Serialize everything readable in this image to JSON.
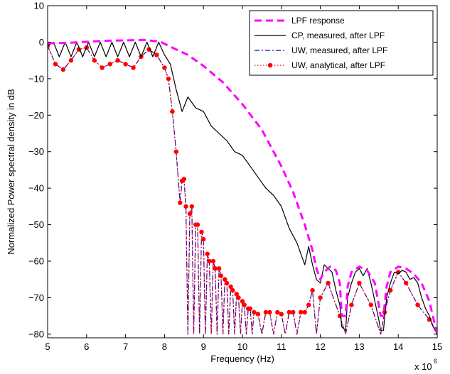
{
  "chart_data": {
    "type": "line",
    "xlabel": "Frequency (Hz)",
    "ylabel": "Normalized Power spectral density in dB",
    "x_multiplier": "x 10",
    "x_multiplier_exp": "6",
    "xlim": [
      5,
      15
    ],
    "ylim": [
      -81,
      10
    ],
    "xticks": [
      5,
      6,
      7,
      8,
      9,
      10,
      11,
      12,
      13,
      14,
      15
    ],
    "yticks": [
      10,
      0,
      -10,
      -20,
      -30,
      -40,
      -50,
      -60,
      -70,
      -80
    ],
    "grid": false,
    "legend_position": "top-right",
    "series": [
      {
        "name": "LPF response",
        "color": "#ff00ff",
        "style": "dashed",
        "x": [
          5.0,
          5.5,
          6.0,
          6.5,
          7.0,
          7.5,
          7.9,
          8.2,
          8.6,
          9.0,
          9.5,
          10.0,
          10.5,
          11.0,
          11.3,
          11.6,
          11.8,
          11.9,
          12.0,
          12.1,
          12.25,
          12.4,
          12.5,
          12.55,
          12.65,
          12.7,
          12.8,
          13.0,
          13.2,
          13.4,
          13.55,
          13.62,
          13.7,
          13.8,
          14.0,
          14.2,
          14.4,
          14.6,
          14.8,
          15.0
        ],
        "y": [
          -0.3,
          -0.2,
          0.1,
          0.4,
          0.5,
          0.6,
          0.1,
          -1.5,
          -3.5,
          -6.5,
          -11.0,
          -17.0,
          -24.0,
          -34.0,
          -41.0,
          -50.0,
          -57.0,
          -62.0,
          -65.0,
          -63.0,
          -61.5,
          -62.5,
          -66.0,
          -75.0,
          -75.0,
          -67.0,
          -63.0,
          -61.5,
          -62.5,
          -66.0,
          -75.0,
          -75.0,
          -67.0,
          -63.0,
          -61.5,
          -62.0,
          -63.5,
          -66.0,
          -71.0,
          -80.0
        ]
      },
      {
        "name": "CP, measured, after LPF",
        "color": "#000000",
        "style": "solid",
        "x": [
          5.0,
          5.15,
          5.3,
          5.45,
          5.6,
          5.75,
          5.9,
          6.05,
          6.2,
          6.35,
          6.5,
          6.65,
          6.8,
          6.95,
          7.1,
          7.25,
          7.4,
          7.55,
          7.7,
          7.85,
          8.0,
          8.15,
          8.3,
          8.45,
          8.6,
          8.8,
          9.0,
          9.2,
          9.4,
          9.6,
          9.8,
          10.0,
          10.2,
          10.4,
          10.6,
          10.8,
          11.0,
          11.2,
          11.4,
          11.6,
          11.7,
          11.8,
          11.9,
          12.0,
          12.1,
          12.2,
          12.3,
          12.4,
          12.5,
          12.55,
          12.65,
          12.7,
          12.8,
          12.9,
          13.0,
          13.1,
          13.2,
          13.3,
          13.4,
          13.5,
          13.55,
          13.62,
          13.7,
          13.8,
          13.9,
          14.0,
          14.1,
          14.2,
          14.3,
          14.4,
          14.5,
          14.6,
          14.7,
          14.8,
          14.9,
          15.0
        ],
        "y": [
          -1.0,
          0.0,
          -4.0,
          0.0,
          -4.0,
          0.0,
          -4.0,
          0.0,
          -4.0,
          0.0,
          -4.0,
          0.0,
          -4.0,
          0.0,
          -4.0,
          0.0,
          -4.0,
          0.0,
          -4.0,
          0.0,
          -3.5,
          -6.0,
          -13.0,
          -19.0,
          -15.0,
          -18.0,
          -19.0,
          -23.0,
          -25.0,
          -27.0,
          -30.0,
          -31.0,
          -34.0,
          -37.0,
          -40.0,
          -42.0,
          -45.0,
          -51.0,
          -55.0,
          -61.0,
          -56.0,
          -61.0,
          -65.0,
          -66.0,
          -61.0,
          -62.0,
          -63.0,
          -68.0,
          -72.0,
          -78.0,
          -79.0,
          -70.0,
          -66.0,
          -63.0,
          -62.0,
          -64.0,
          -62.0,
          -66.0,
          -71.0,
          -76.0,
          -79.0,
          -79.0,
          -70.0,
          -66.0,
          -63.0,
          -63.5,
          -62.5,
          -63.0,
          -65.0,
          -64.5,
          -66.0,
          -70.0,
          -73.0,
          -75.0,
          -78.0,
          -80.0
        ]
      },
      {
        "name": "UW, measured, after LPF",
        "color": "#0000cc",
        "style": "dashdot",
        "x": [
          5.0,
          5.2,
          5.4,
          5.6,
          5.8,
          6.0,
          6.2,
          6.4,
          6.6,
          6.8,
          7.0,
          7.2,
          7.4,
          7.6,
          7.8,
          8.0,
          8.1,
          8.2,
          8.3,
          8.4,
          8.45,
          8.5,
          8.55,
          8.6,
          8.65,
          8.7,
          8.75,
          8.8,
          8.85,
          8.9,
          8.95,
          9.0,
          9.05,
          9.1,
          9.15,
          9.2,
          9.25,
          9.3,
          9.35,
          9.4,
          9.45,
          9.5,
          9.55,
          9.6,
          9.65,
          9.7,
          9.75,
          9.8,
          9.85,
          9.9,
          9.95,
          10.0,
          10.05,
          10.1,
          10.15,
          10.2,
          10.25,
          10.3,
          10.4,
          10.5,
          10.6,
          10.7,
          10.8,
          10.9,
          11.0,
          11.1,
          11.2,
          11.3,
          11.4,
          11.5,
          11.6,
          11.7,
          11.8,
          11.9,
          12.0,
          12.2,
          12.5,
          12.65,
          12.8,
          13.0,
          13.3,
          13.55,
          13.65,
          13.8,
          14.0,
          14.2,
          14.5,
          14.8,
          15.0
        ],
        "y": [
          -1.0,
          -6.0,
          -7.5,
          -5.0,
          -2.0,
          -1.5,
          -5.0,
          -7.0,
          -6.0,
          -5.0,
          -6.0,
          -7.0,
          -4.0,
          -2.0,
          -3.5,
          -7.0,
          -10.0,
          -19.0,
          -30.0,
          -44.0,
          -38.0,
          -37.5,
          -45.0,
          -80.0,
          -47.0,
          -45.0,
          -80.0,
          -50.0,
          -50.0,
          -80.0,
          -52.0,
          -54.0,
          -80.0,
          -58.0,
          -60.0,
          -80.0,
          -60.0,
          -62.0,
          -80.0,
          -62.0,
          -64.0,
          -80.0,
          -65.0,
          -66.0,
          -80.0,
          -67.0,
          -68.0,
          -80.0,
          -69.0,
          -70.0,
          -80.0,
          -71.0,
          -72.0,
          -80.0,
          -73.0,
          -73.0,
          -80.0,
          -74.0,
          -74.5,
          -80.0,
          -74.0,
          -74.0,
          -80.0,
          -74.0,
          -74.5,
          -80.0,
          -74.0,
          -74.0,
          -80.0,
          -74.0,
          -74.0,
          -72.0,
          -68.0,
          -80.0,
          -70.0,
          -66.0,
          -75.0,
          -80.0,
          -72.0,
          -66.0,
          -72.0,
          -80.0,
          -74.0,
          -68.0,
          -63.0,
          -66.0,
          -72.0,
          -76.0,
          -80.0
        ]
      },
      {
        "name": "UW, analytical, after LPF",
        "color": "#ff0000",
        "style": "dotted-markers",
        "x": [
          5.0,
          5.2,
          5.4,
          5.6,
          5.8,
          6.0,
          6.2,
          6.4,
          6.6,
          6.8,
          7.0,
          7.2,
          7.4,
          7.6,
          7.8,
          8.0,
          8.1,
          8.2,
          8.3,
          8.4,
          8.45,
          8.5,
          8.55,
          8.6,
          8.65,
          8.7,
          8.75,
          8.8,
          8.85,
          8.9,
          8.95,
          9.0,
          9.05,
          9.1,
          9.15,
          9.2,
          9.25,
          9.3,
          9.35,
          9.4,
          9.45,
          9.5,
          9.55,
          9.6,
          9.65,
          9.7,
          9.75,
          9.8,
          9.85,
          9.9,
          9.95,
          10.0,
          10.05,
          10.1,
          10.15,
          10.2,
          10.25,
          10.3,
          10.4,
          10.5,
          10.6,
          10.7,
          10.8,
          10.9,
          11.0,
          11.1,
          11.2,
          11.3,
          11.4,
          11.5,
          11.6,
          11.7,
          11.8,
          11.9,
          12.0,
          12.2,
          12.5,
          12.65,
          12.8,
          13.0,
          13.3,
          13.55,
          13.65,
          13.8,
          14.0,
          14.2,
          14.5,
          14.8,
          15.0
        ],
        "y": [
          -1.0,
          -6.0,
          -7.5,
          -5.0,
          -2.0,
          -1.5,
          -5.0,
          -7.0,
          -6.0,
          -5.0,
          -6.0,
          -7.0,
          -4.0,
          -2.0,
          -3.5,
          -7.0,
          -10.0,
          -19.0,
          -30.0,
          -44.0,
          -38.0,
          -37.5,
          -45.0,
          -80.0,
          -47.0,
          -45.0,
          -80.0,
          -50.0,
          -50.0,
          -80.0,
          -52.0,
          -54.0,
          -80.0,
          -58.0,
          -60.0,
          -80.0,
          -60.0,
          -62.0,
          -80.0,
          -62.0,
          -64.0,
          -80.0,
          -65.0,
          -66.0,
          -80.0,
          -67.0,
          -68.0,
          -80.0,
          -69.0,
          -70.0,
          -80.0,
          -71.0,
          -72.0,
          -80.0,
          -73.0,
          -73.0,
          -80.0,
          -74.0,
          -74.5,
          -80.0,
          -74.0,
          -74.0,
          -80.0,
          -74.0,
          -74.5,
          -80.0,
          -74.0,
          -74.0,
          -80.0,
          -74.0,
          -74.0,
          -72.0,
          -68.0,
          -80.0,
          -70.0,
          -66.0,
          -75.0,
          -80.0,
          -72.0,
          -66.0,
          -72.0,
          -80.0,
          -74.0,
          -68.0,
          -63.0,
          -66.0,
          -72.0,
          -76.0,
          -80.0
        ]
      }
    ]
  }
}
